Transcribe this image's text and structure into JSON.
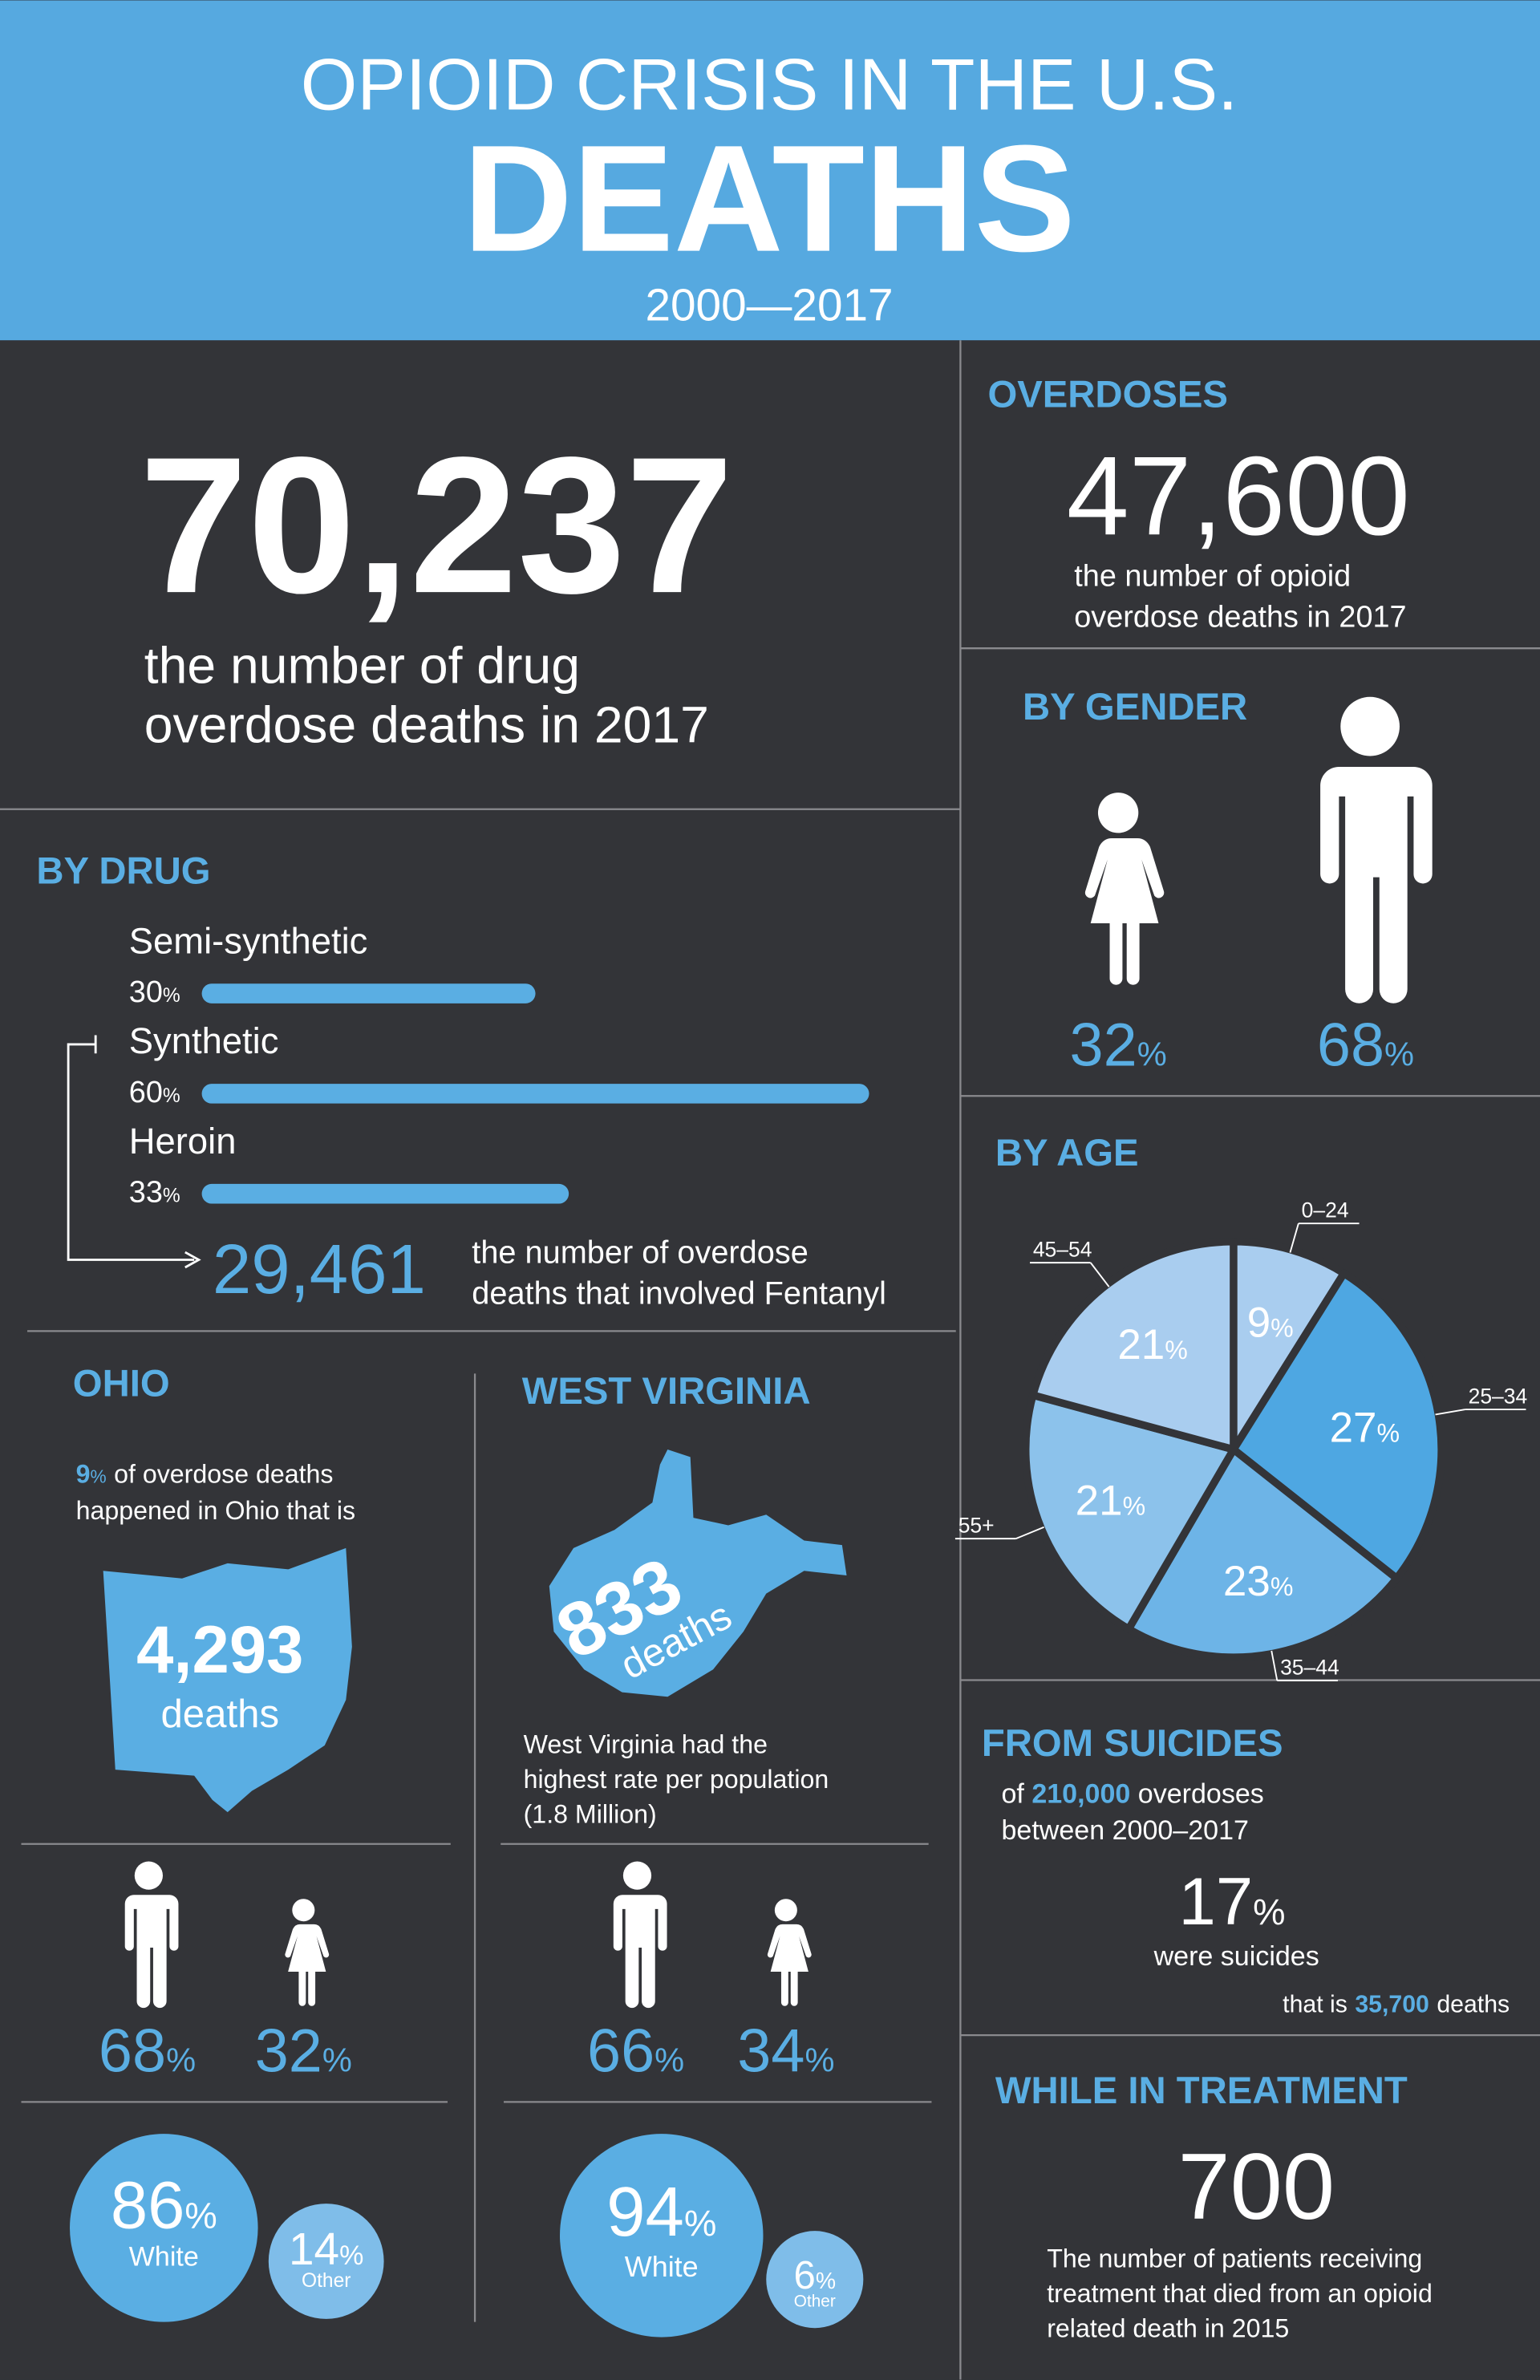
{
  "header": {
    "title": "OPIOID CRISIS IN THE U.S.",
    "headline": "DEATHS",
    "years": "2000—2017"
  },
  "percent_sign": "%",
  "total": {
    "number": "70,237",
    "caption_lines": [
      "the number of drug",
      "overdose deaths in 2017"
    ]
  },
  "overdoses": {
    "heading": "OVERDOSES",
    "number": "47,600",
    "caption_lines": [
      "the number of opioid",
      "overdose deaths in 2017"
    ]
  },
  "by_gender": {
    "heading": "BY GENDER",
    "values": [
      32,
      68
    ]
  },
  "by_drug": {
    "heading": "BY DRUG",
    "type": "bar",
    "categories": [
      "Semi-synthetic",
      "Synthetic",
      "Heroin"
    ],
    "values": [
      30,
      60,
      33
    ],
    "color": "#5aaee3",
    "fentanyl": {
      "number": "29,461",
      "caption_lines": [
        "the number of overdose",
        "deaths that involved Fentanyl"
      ]
    }
  },
  "by_age": {
    "heading": "BY AGE",
    "type": "pie",
    "categories": [
      "0–24",
      "25–34",
      "35–44",
      "55+",
      "45–54"
    ],
    "values": [
      9,
      27,
      23,
      21,
      21
    ],
    "colors": [
      "#a9cdef",
      "#4ea7e2",
      "#6db4e7",
      "#8cc2eb",
      "#a9cdef"
    ]
  },
  "suicides": {
    "heading": "FROM SUICIDES",
    "line1": [
      "of",
      "210,000",
      "overdoses"
    ],
    "line2": "between 2000–2017",
    "share": 17,
    "share_caption": "were suicides",
    "line3": [
      "that is",
      "35,700",
      "deaths"
    ]
  },
  "treatment": {
    "heading": "WHILE IN TREATMENT",
    "number": "700",
    "caption_lines": [
      "The number of patients receiving",
      "treatment that died from an opioid",
      "related death in 2015"
    ]
  },
  "ohio": {
    "heading": "OHIO",
    "share": 9,
    "intro_lines": [
      "of overdose deaths",
      "happened in Ohio that is"
    ],
    "number": "4,293",
    "unit": "deaths",
    "gender": [
      68,
      32
    ],
    "race": [
      {
        "value": 86,
        "label": "White"
      },
      {
        "value": 14,
        "label": "Other"
      }
    ]
  },
  "west_virginia": {
    "heading": "WEST VIRGINIA",
    "number": "833",
    "unit": "deaths",
    "caption_lines": [
      "West Virginia had the",
      "highest rate per population",
      "(1.8 Million)"
    ],
    "gender": [
      66,
      34
    ],
    "race": [
      {
        "value": 94,
        "label": "White"
      },
      {
        "value": 6,
        "label": "Other"
      }
    ]
  }
}
